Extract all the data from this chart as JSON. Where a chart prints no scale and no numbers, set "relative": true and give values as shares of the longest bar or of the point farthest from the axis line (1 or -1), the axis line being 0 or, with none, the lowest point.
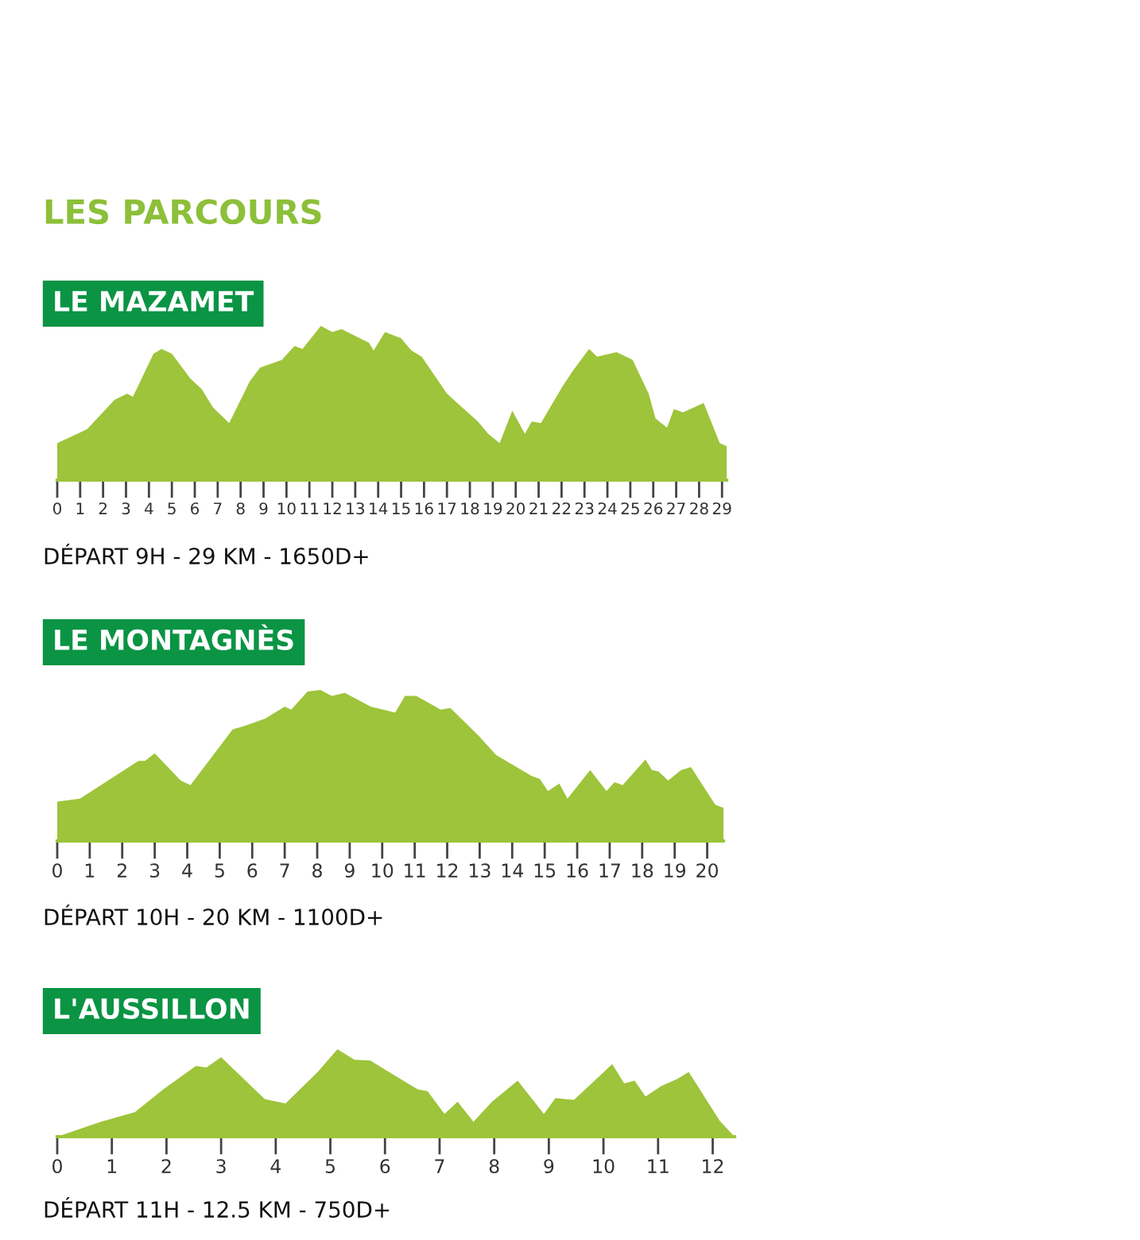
{
  "chart_data": [
    {
      "type": "area",
      "relative": true,
      "title": "LE MAZAMET",
      "annotations": [
        "LES PARCOURS",
        "DÉPART 9H - 29 KM - 1650D+"
      ],
      "xlim": [
        0,
        29.2
      ],
      "xticks": [
        0,
        1,
        2,
        3,
        4,
        5,
        6,
        7,
        8,
        9,
        10,
        11,
        12,
        13,
        14,
        15,
        16,
        17,
        18,
        19,
        20,
        21,
        22,
        23,
        24,
        25,
        26,
        27,
        28,
        29
      ],
      "grid": false,
      "legend": false,
      "series": [
        {
          "color": "#9dc43a",
          "x": [
            0,
            1.3,
            2.5,
            3.05,
            3.3,
            4.2,
            4.55,
            5.0,
            5.8,
            6.3,
            6.8,
            7.5,
            8.4,
            8.85,
            9.8,
            10.35,
            10.7,
            11.5,
            12.0,
            12.4,
            13.6,
            13.8,
            14.3,
            15.0,
            15.45,
            15.9,
            17.0,
            18.35,
            18.8,
            19.3,
            19.85,
            20.4,
            20.7,
            21.1,
            22.05,
            22.5,
            23.2,
            23.55,
            24.4,
            25.1,
            25.8,
            26.1,
            26.6,
            26.9,
            27.3,
            28.2,
            28.9,
            29.2
          ],
          "values": [
            0.24,
            0.33,
            0.52,
            0.56,
            0.54,
            0.82,
            0.85,
            0.82,
            0.66,
            0.59,
            0.47,
            0.37,
            0.64,
            0.73,
            0.78,
            0.87,
            0.85,
            1.0,
            0.96,
            0.98,
            0.89,
            0.84,
            0.96,
            0.92,
            0.84,
            0.8,
            0.56,
            0.38,
            0.3,
            0.24,
            0.45,
            0.3,
            0.38,
            0.37,
            0.61,
            0.71,
            0.85,
            0.8,
            0.83,
            0.78,
            0.56,
            0.4,
            0.34,
            0.46,
            0.44,
            0.5,
            0.24,
            0.22
          ]
        }
      ]
    },
    {
      "type": "area",
      "relative": true,
      "title": "LE MONTAGNÈS",
      "annotations": [
        "DÉPART 10H - 20 KM - 1100D+"
      ],
      "xlim": [
        0,
        20.5
      ],
      "xticks": [
        0,
        1,
        2,
        3,
        4,
        5,
        6,
        7,
        8,
        9,
        10,
        11,
        12,
        13,
        14,
        15,
        16,
        17,
        18,
        19,
        20
      ],
      "grid": false,
      "legend": false,
      "series": [
        {
          "color": "#9dc43a",
          "x": [
            0,
            0.7,
            2.5,
            2.7,
            3.0,
            3.8,
            4.1,
            5.4,
            5.75,
            6.4,
            7.0,
            7.2,
            7.7,
            8.1,
            8.45,
            8.85,
            9.65,
            10.4,
            10.7,
            11.05,
            11.8,
            12.1,
            13.0,
            13.5,
            14.6,
            14.85,
            15.1,
            15.45,
            15.7,
            16.4,
            16.9,
            17.15,
            17.4,
            18.1,
            18.3,
            18.5,
            18.8,
            19.2,
            19.5,
            20.25,
            20.5
          ],
          "values": [
            0.26,
            0.28,
            0.53,
            0.53,
            0.58,
            0.4,
            0.37,
            0.74,
            0.76,
            0.81,
            0.89,
            0.87,
            0.99,
            1.0,
            0.96,
            0.98,
            0.89,
            0.85,
            0.96,
            0.96,
            0.87,
            0.88,
            0.69,
            0.57,
            0.43,
            0.41,
            0.33,
            0.38,
            0.28,
            0.47,
            0.33,
            0.39,
            0.37,
            0.54,
            0.47,
            0.46,
            0.4,
            0.47,
            0.49,
            0.24,
            0.22
          ]
        }
      ]
    },
    {
      "type": "area",
      "relative": true,
      "title": "L'AUSSILLON",
      "annotations": [
        "DÉPART 11H - 12.5 KM - 750D+"
      ],
      "xlim": [
        0,
        12.4
      ],
      "xticks": [
        0,
        1,
        2,
        3,
        4,
        5,
        6,
        7,
        8,
        9,
        10,
        11,
        12
      ],
      "grid": false,
      "legend": false,
      "series": [
        {
          "color": "#9dc43a",
          "x": [
            0,
            0.8,
            1.42,
            1.96,
            2.54,
            2.73,
            3.0,
            3.8,
            4.18,
            4.77,
            5.13,
            5.44,
            5.73,
            6.6,
            6.78,
            7.09,
            7.33,
            7.62,
            7.96,
            8.43,
            8.91,
            9.12,
            9.46,
            10.16,
            10.38,
            10.57,
            10.77,
            11.06,
            11.35,
            11.56,
            12.13,
            12.4
          ],
          "values": [
            0,
            0.17,
            0.28,
            0.55,
            0.81,
            0.79,
            0.91,
            0.43,
            0.38,
            0.74,
            1.0,
            0.88,
            0.87,
            0.54,
            0.52,
            0.26,
            0.4,
            0.17,
            0.4,
            0.64,
            0.26,
            0.44,
            0.42,
            0.83,
            0.61,
            0.64,
            0.46,
            0.58,
            0.66,
            0.74,
            0.18,
            0
          ]
        }
      ]
    }
  ]
}
